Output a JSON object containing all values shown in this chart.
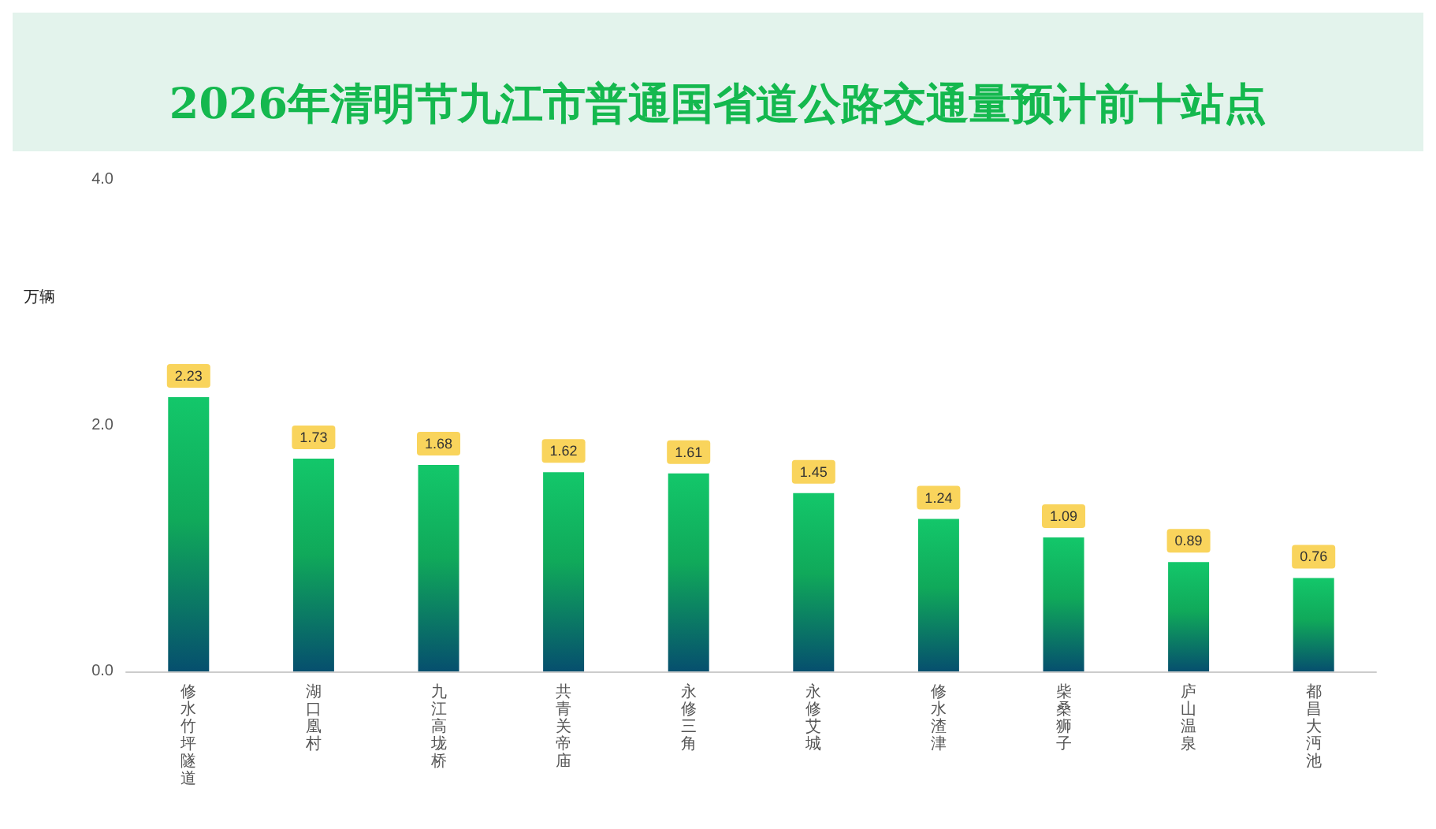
{
  "chart_data": {
    "type": "bar",
    "title": "2026年清明节九江市普通国省道公路交通量预计前十站点",
    "ylabel": "万辆",
    "categories": [
      "修水竹坪隧道",
      "湖口凰村",
      "九江高垅桥",
      "共青关帝庙",
      "永修三角",
      "永修艾城",
      "修水渣津",
      "柴桑狮子",
      "庐山温泉",
      "都昌大沔池"
    ],
    "values": [
      2.23,
      1.73,
      1.68,
      1.62,
      1.61,
      1.45,
      1.24,
      1.09,
      0.89,
      0.76
    ],
    "color": "#13c76a",
    "ylim": [
      0,
      4
    ],
    "yticks": [
      {
        "value": 0,
        "label": "0.0"
      },
      {
        "value": 2,
        "label": "2.0"
      },
      {
        "value": 4,
        "label": "4.0"
      }
    ],
    "data_labels": true,
    "grid": false
  }
}
